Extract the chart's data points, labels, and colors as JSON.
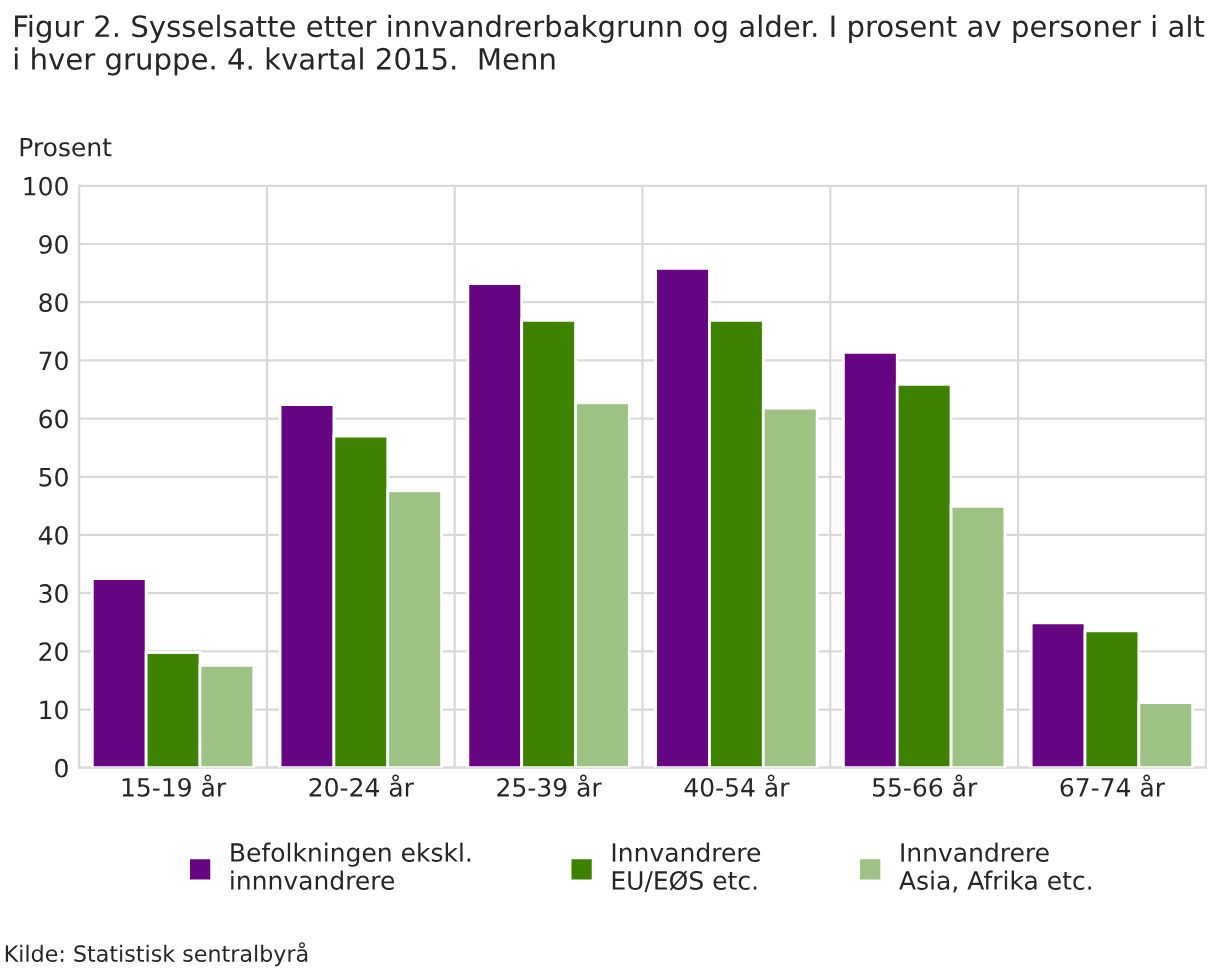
{
  "chart_data": {
    "type": "bar",
    "title": "Figur 2. Sysselsatte etter innvandrerbakgrunn og alder. I prosent av personer i alt i hver gruppe. 4. kvartal 2015.  Menn",
    "ylabel": "Prosent",
    "categories": [
      "15-19 år",
      "20-24 år",
      "25-39 år",
      "40-54 år",
      "55-66 år",
      "67-74 år"
    ],
    "series": [
      {
        "name": "Befolkningen ekskl.\ninnnvandrere",
        "color": "#670682",
        "values": [
          32.5,
          62.4,
          83.2,
          85.8,
          71.4,
          24.9
        ]
      },
      {
        "name": "Innvandrere\nEU/EØS etc.",
        "color": "#3d8201",
        "values": [
          19.8,
          57.0,
          76.9,
          76.9,
          65.9,
          23.5
        ]
      },
      {
        "name": "Innvandrere\nAsia, Afrika etc.",
        "color": "#9dc284",
        "values": [
          17.6,
          47.6,
          62.7,
          61.8,
          44.9,
          11.2
        ]
      }
    ],
    "ylim": [
      0,
      100
    ],
    "yticks": [
      0,
      10,
      20,
      30,
      40,
      50,
      60,
      70,
      80,
      90,
      100
    ],
    "grid": true,
    "legend": "bottom",
    "annotations": [
      "Kilde: Statistisk sentralbyrå"
    ]
  }
}
